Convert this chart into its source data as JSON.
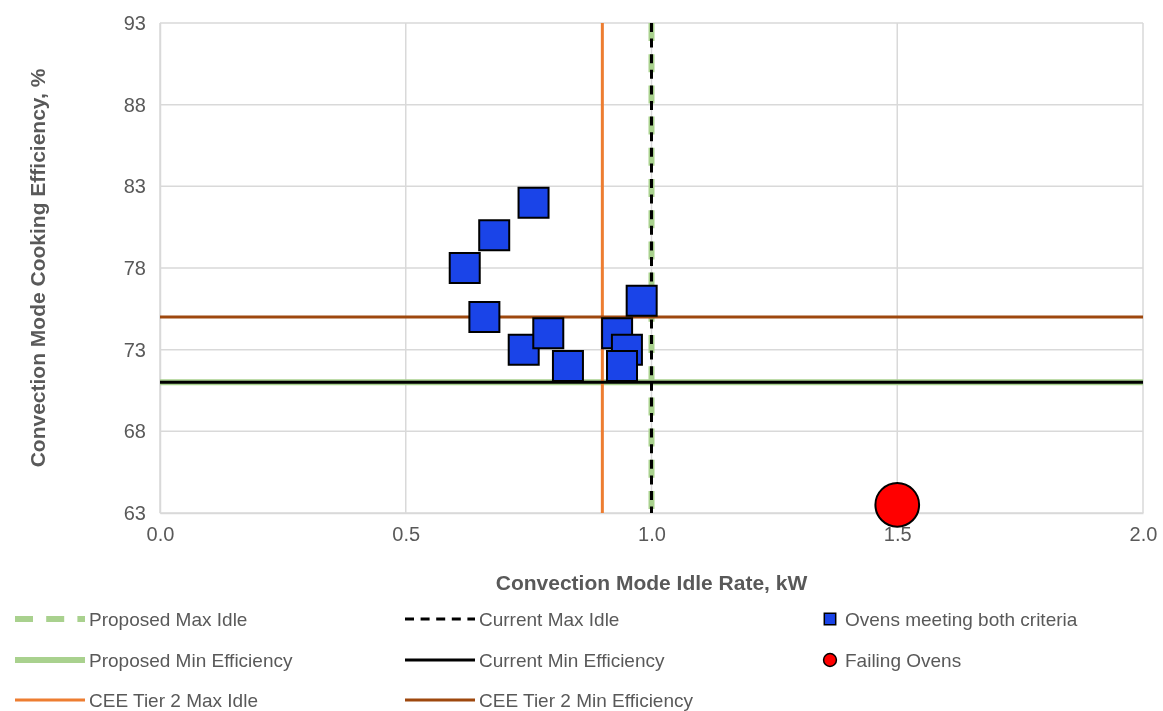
{
  "chart_data": {
    "type": "scatter",
    "xlabel": "Convection Mode Idle Rate, kW",
    "ylabel": "Convection Mode Cooking Efficiency, %",
    "xlim": [
      0,
      2
    ],
    "xticks": [
      {
        "value": 0,
        "label": "0.0"
      },
      {
        "value": 0.5,
        "label": "0.5"
      },
      {
        "value": 1,
        "label": "1.0"
      },
      {
        "value": 1.5,
        "label": "1.5"
      },
      {
        "value": 2,
        "label": "2.0"
      }
    ],
    "ylim": [
      63,
      93
    ],
    "yticks": [
      63,
      68,
      73,
      78,
      83,
      88,
      93
    ],
    "grid": true,
    "legend": "bottom",
    "ref_lines": [
      {
        "axis": "x",
        "value": 1.0,
        "label": "Proposed Max Idle",
        "color": "#a9d18e",
        "line_style": "dashed"
      },
      {
        "axis": "y",
        "value": 71,
        "label": "Proposed Min Efficiency",
        "color": "#a9d18e",
        "line_style": "solid"
      },
      {
        "axis": "x",
        "value": 0.9,
        "label": "CEE Tier 2 Max Idle",
        "color": "#ed7d31",
        "line_style": "solid"
      },
      {
        "axis": "x",
        "value": 1.0,
        "label": "Current Max Idle",
        "color": "#000000",
        "line_style": "dashed"
      },
      {
        "axis": "y",
        "value": 71,
        "label": "Current Min Efficiency",
        "color": "#000000",
        "line_style": "solid"
      },
      {
        "axis": "y",
        "value": 75,
        "label": "CEE Tier 2 Min Efficiency",
        "color": "#9e480e",
        "line_style": "solid"
      }
    ],
    "series": [
      {
        "name": "Ovens meeting both criteria",
        "color": "#1a44e8",
        "marker": "square",
        "x": [
          0.76,
          0.68,
          0.62,
          0.66,
          0.98,
          0.74,
          0.79,
          0.83,
          0.93,
          0.95,
          0.94
        ],
        "values": [
          82,
          80,
          78,
          75,
          76,
          73,
          74,
          72,
          74,
          73,
          72
        ]
      },
      {
        "name": "Failing Ovens",
        "color": "#ff0000",
        "marker": "circle",
        "x": [
          1.5
        ],
        "values": [
          63.5
        ]
      }
    ]
  }
}
